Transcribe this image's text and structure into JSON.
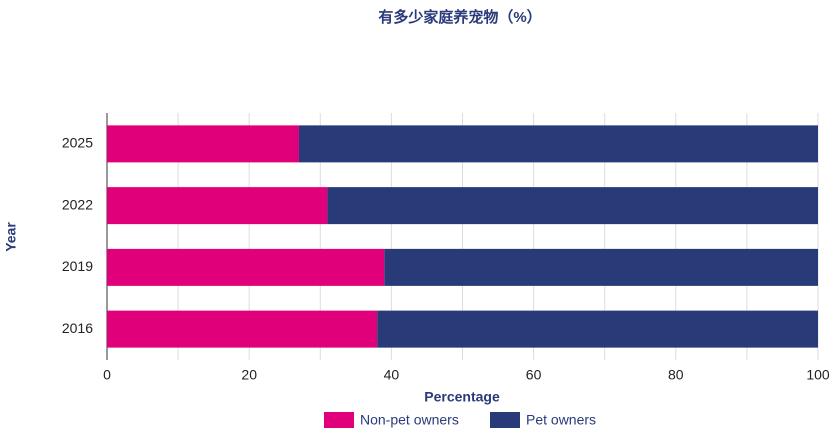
{
  "chart_data": {
    "type": "stacked_barh",
    "title": "有多少家庭养宠物（%）",
    "xlabel": "Percentage",
    "ylabel": "Year",
    "categories": [
      "2025",
      "2022",
      "2019",
      "2016"
    ],
    "series": [
      {
        "name": "Non-pet owners",
        "color": "#e0007a",
        "values": [
          27,
          31,
          39,
          38
        ]
      },
      {
        "name": "Pet owners",
        "color": "#283a78",
        "values": [
          73,
          69,
          61,
          62
        ]
      }
    ],
    "xlim": [
      0,
      100
    ],
    "xticks": [
      0,
      20,
      40,
      60,
      80,
      100
    ],
    "minor_xticks": [
      10,
      30,
      50,
      70,
      90
    ],
    "grid": true,
    "legend": "bottom"
  }
}
